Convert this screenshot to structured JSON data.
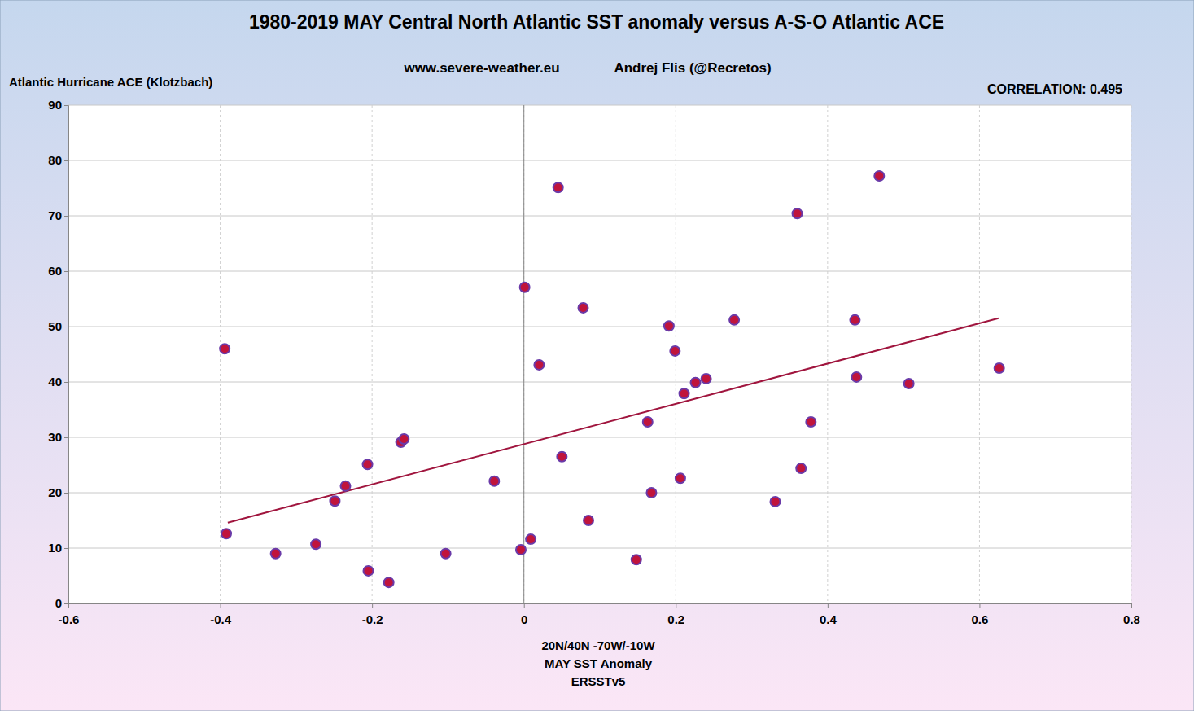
{
  "chart_data": {
    "type": "scatter",
    "title": "1980-2019 MAY Central North Atlantic SST anomaly versus A-S-O Atlantic ACE",
    "subtitle": "www.severe-weather.eu",
    "annotations": [
      "Andrej Flis (@Recretos)",
      "CORRELATION: 0.495"
    ],
    "y_label": "Atlantic Hurricane ACE (Klotzbach)",
    "x_label": [
      "20N/40N -70W/-10W",
      "MAY SST Anomaly",
      "ERSSTv5"
    ],
    "x": [
      -0.394,
      -0.392,
      -0.327,
      -0.274,
      -0.249,
      -0.235,
      -0.206,
      -0.205,
      -0.178,
      -0.162,
      -0.158,
      -0.103,
      -0.039,
      -0.004,
      0.001,
      0.009,
      0.02,
      0.045,
      0.05,
      0.078,
      0.085,
      0.148,
      0.163,
      0.168,
      0.191,
      0.199,
      0.206,
      0.211,
      0.226,
      0.24,
      0.277,
      0.331,
      0.36,
      0.365,
      0.378,
      0.436,
      0.438,
      0.468,
      0.507,
      0.626
    ],
    "values": [
      46.0,
      12.6,
      9.0,
      10.7,
      18.5,
      21.2,
      25.1,
      5.9,
      3.8,
      29.1,
      29.7,
      9.0,
      22.1,
      9.7,
      57.1,
      11.6,
      43.1,
      75.1,
      26.5,
      53.4,
      15.0,
      7.9,
      32.8,
      20.0,
      50.1,
      45.6,
      22.6,
      37.9,
      39.9,
      40.6,
      51.2,
      18.4,
      70.4,
      24.4,
      32.8,
      51.2,
      40.9,
      77.2,
      39.7,
      42.5
    ],
    "color": "#c0143c",
    "marker": "circle",
    "trendline": {
      "x": [
        -0.39,
        0.625
      ],
      "values": [
        14.6,
        51.5
      ],
      "color": "#a0153e"
    },
    "xlim": [
      -0.6,
      0.8
    ],
    "xticks": [
      -0.6,
      -0.4,
      -0.2,
      0,
      0.2,
      0.4,
      0.6,
      0.8
    ],
    "ylim": [
      0,
      90
    ],
    "yticks": [
      0,
      10,
      20,
      30,
      40,
      50,
      60,
      70,
      80,
      90
    ],
    "grid": true
  }
}
